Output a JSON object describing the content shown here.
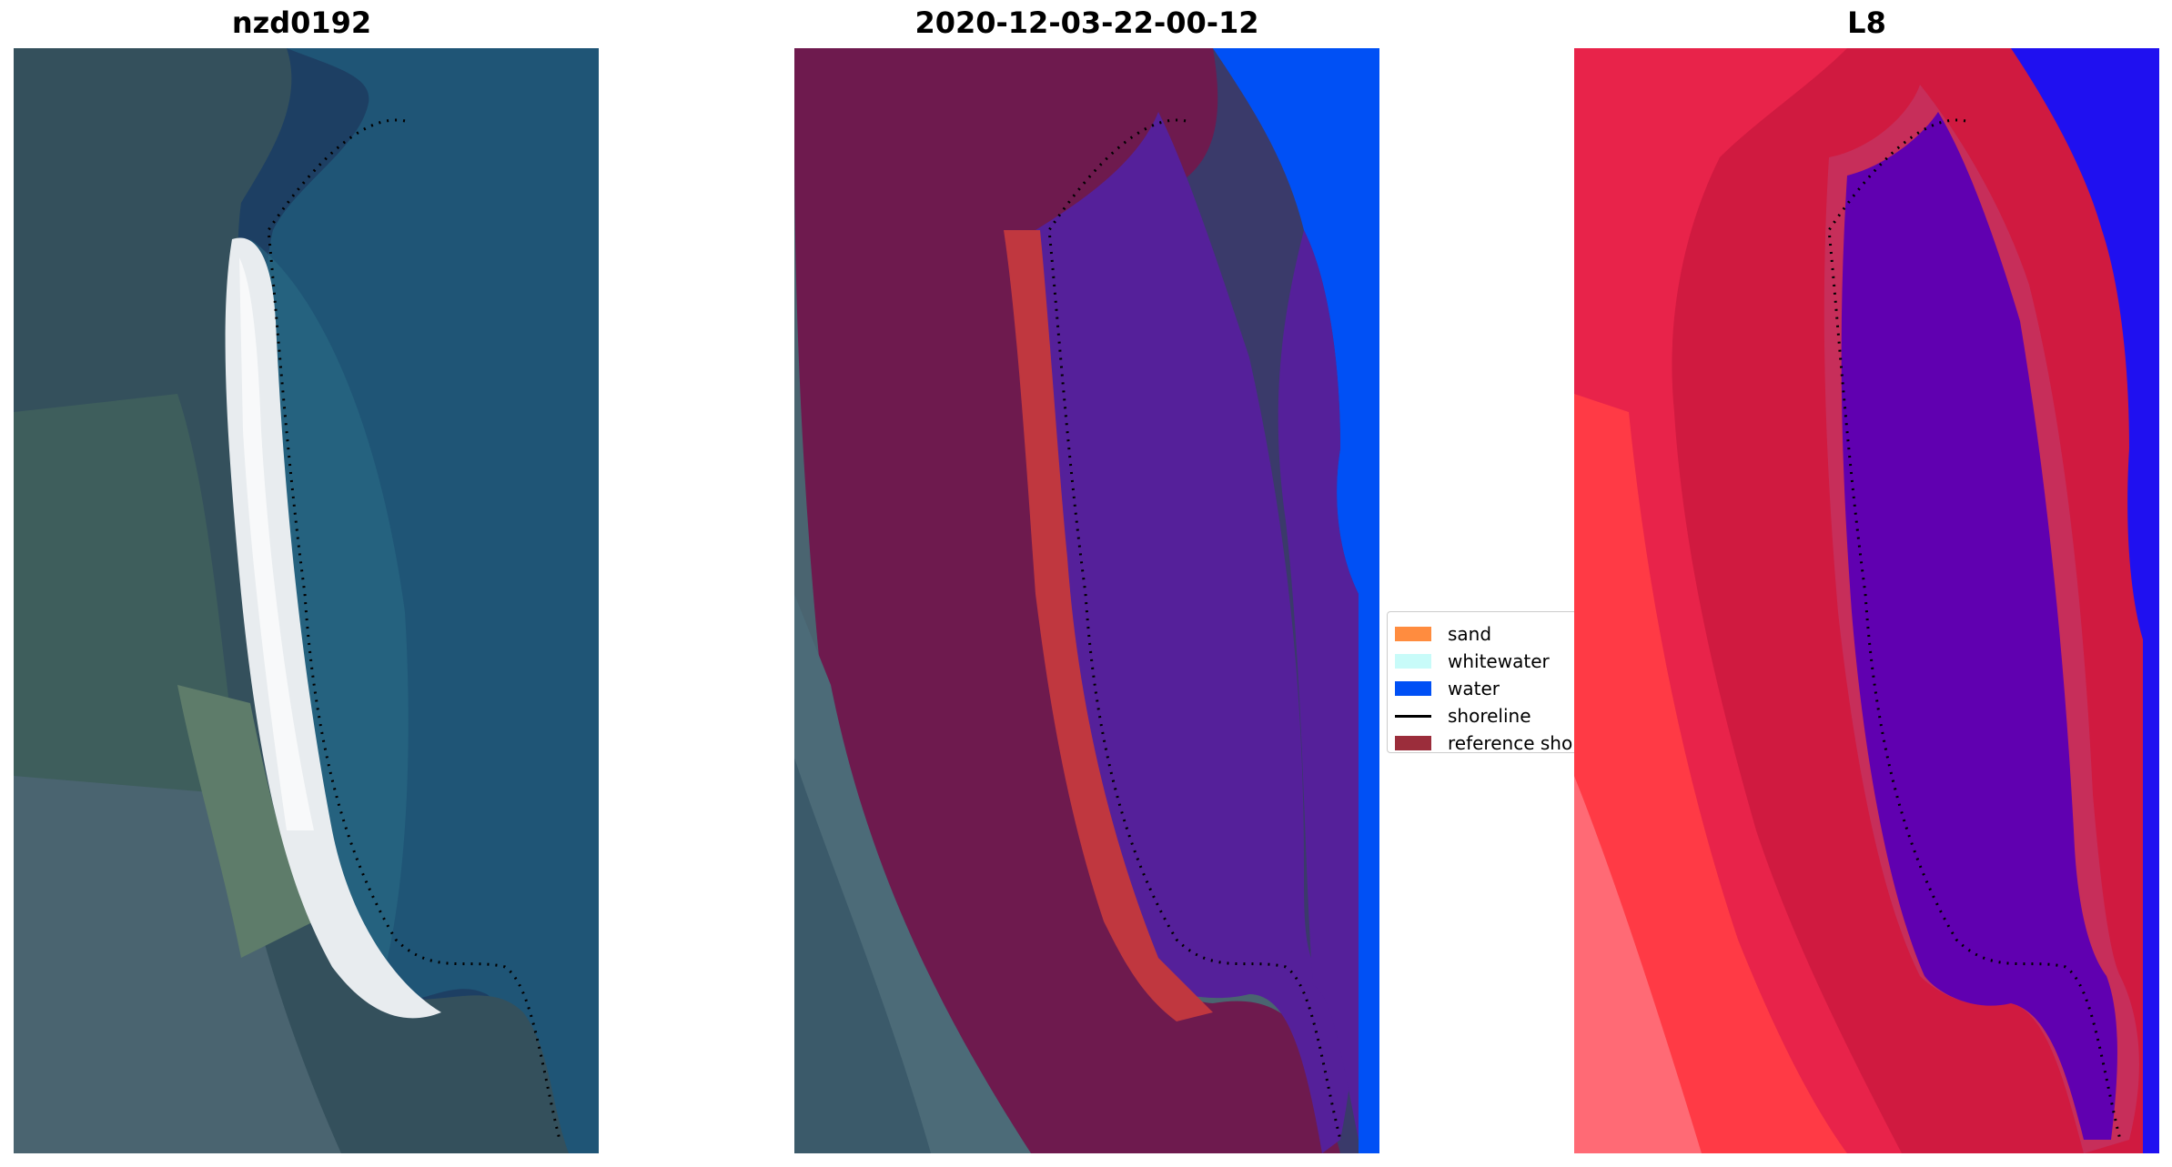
{
  "panels": [
    {
      "title": "nzd0192"
    },
    {
      "title": "2020-12-03-22-00-12"
    },
    {
      "title": "L8"
    }
  ],
  "legend": {
    "items": [
      {
        "label": "sand",
        "color": "#ff8c3f"
      },
      {
        "label": "whitewater",
        "color": "#c8fbf9"
      },
      {
        "label": "water",
        "color": "#0050f5"
      },
      {
        "label": "shoreline",
        "color": "#000000"
      },
      {
        "label": "reference shoreline",
        "color": "#9b2d3b"
      }
    ]
  },
  "colors": {
    "ocean": "#1f4d73",
    "land": "#36505a",
    "beach": "#e8ecef",
    "sand_class": "#c0373f",
    "water_class": "#0050f5",
    "lagoon_class": "#55209a",
    "land_overlay": "#6e1a4e",
    "ndwi_land": "#d01a40",
    "ndwi_water": "#6000b0",
    "ndwi_sea": "#1f10f0"
  }
}
